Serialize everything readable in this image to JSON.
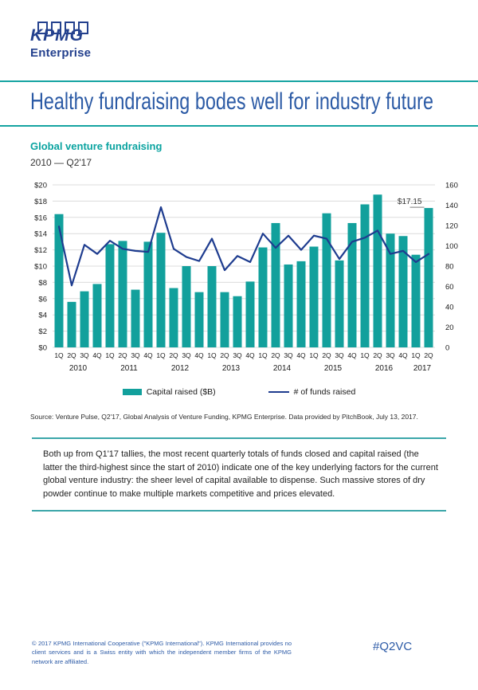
{
  "brand": {
    "logo_text": "KPMG",
    "logo_sub": "Enterprise"
  },
  "headline": "Healthy fundraising bodes well for industry future",
  "section": {
    "title": "Global venture fundraising",
    "subtitle": "2010 — Q2'17"
  },
  "chart_data": {
    "type": "bar",
    "quarters": [
      "1Q",
      "2Q",
      "3Q",
      "4Q",
      "1Q",
      "2Q",
      "3Q",
      "4Q",
      "1Q",
      "2Q",
      "3Q",
      "4Q",
      "1Q",
      "2Q",
      "3Q",
      "4Q",
      "1Q",
      "2Q",
      "3Q",
      "4Q",
      "1Q",
      "2Q",
      "3Q",
      "4Q",
      "1Q",
      "2Q",
      "3Q",
      "4Q",
      "1Q",
      "2Q"
    ],
    "years": [
      "2010",
      "2011",
      "2012",
      "2013",
      "2014",
      "2015",
      "2016",
      "2017"
    ],
    "series": [
      {
        "name": "Capital raised ($B)",
        "type": "bar",
        "color": "#12A09C",
        "axis": "left",
        "values": [
          16.4,
          5.6,
          6.9,
          7.8,
          12.7,
          13.1,
          7.1,
          13.0,
          14.1,
          7.3,
          10.0,
          6.8,
          10.0,
          6.8,
          6.3,
          8.1,
          12.3,
          15.3,
          10.2,
          10.6,
          12.4,
          16.5,
          10.7,
          15.3,
          17.6,
          18.8,
          14.0,
          13.7,
          11.4,
          17.15
        ]
      },
      {
        "name": "# of funds raised",
        "type": "line",
        "color": "#1E3C8F",
        "axis": "right",
        "values": [
          119,
          61,
          101,
          92,
          105,
          97,
          95,
          94,
          138,
          97,
          89,
          85,
          107,
          76,
          90,
          84,
          112,
          98,
          110,
          96,
          110,
          107,
          87,
          104,
          108,
          115,
          92,
          95,
          84,
          92
        ]
      }
    ],
    "left_axis": {
      "min": 0,
      "max": 20,
      "step": 2,
      "prefix": "$"
    },
    "right_axis": {
      "min": 0,
      "max": 160,
      "step": 20,
      "prefix": ""
    },
    "annotation": {
      "text": "$17.15",
      "index": 29
    },
    "legend": [
      "Capital raised ($B)",
      "# of funds raised"
    ],
    "grid": "horizontal"
  },
  "source": "Source: Venture Pulse, Q2'17, Global Analysis of Venture Funding, KPMG Enterprise. Data provided by PitchBook, July 13, 2017.",
  "callout": "Both up from Q1'17 tallies, the most recent quarterly totals of funds closed and capital raised (the latter the third-highest since the start of 2010) indicate one of the key underlying factors for the current global venture industry: the sheer level of capital available to dispense. Such massive stores of dry powder continue to make multiple markets competitive and prices elevated.",
  "footer": {
    "legal": "© 2017 KPMG International Cooperative (\"KPMG International\"). KPMG International provides no client services and is a Swiss entity with which the independent member firms of the KPMG network are affiliated.",
    "hashtag": "#Q2VC"
  }
}
